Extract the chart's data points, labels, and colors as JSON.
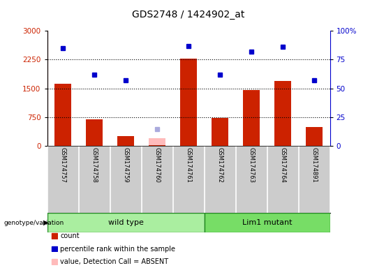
{
  "title": "GDS2748 / 1424902_at",
  "samples": [
    "GSM174757",
    "GSM174758",
    "GSM174759",
    "GSM174760",
    "GSM174761",
    "GSM174762",
    "GSM174763",
    "GSM174764",
    "GSM174891"
  ],
  "counts": [
    1620,
    700,
    260,
    30,
    2270,
    730,
    1460,
    1700,
    500
  ],
  "absent_value": [
    null,
    null,
    null,
    200,
    null,
    null,
    null,
    null,
    null
  ],
  "percentile_ranks": [
    85,
    62,
    57,
    null,
    87,
    62,
    82,
    86,
    57
  ],
  "absent_rank": [
    null,
    null,
    null,
    15,
    null,
    null,
    null,
    null,
    null
  ],
  "wild_type_indices": [
    0,
    1,
    2,
    3,
    4
  ],
  "lim1_mutant_indices": [
    5,
    6,
    7,
    8
  ],
  "left_ylim": [
    0,
    3000
  ],
  "right_ylim": [
    0,
    100
  ],
  "left_yticks": [
    0,
    750,
    1500,
    2250,
    3000
  ],
  "right_yticks": [
    0,
    25,
    50,
    75,
    100
  ],
  "right_yticklabels": [
    "0",
    "25",
    "50",
    "75",
    "100%"
  ],
  "bar_color": "#cc2200",
  "dot_color": "#0000cc",
  "absent_bar_color": "#ffbbbb",
  "absent_dot_color": "#aaaadd",
  "wild_type_color": "#aaeea0",
  "lim1_color": "#77dd66",
  "bg_color": "#cccccc",
  "wt_border_color": "#228822",
  "lm_border_color": "#228822"
}
